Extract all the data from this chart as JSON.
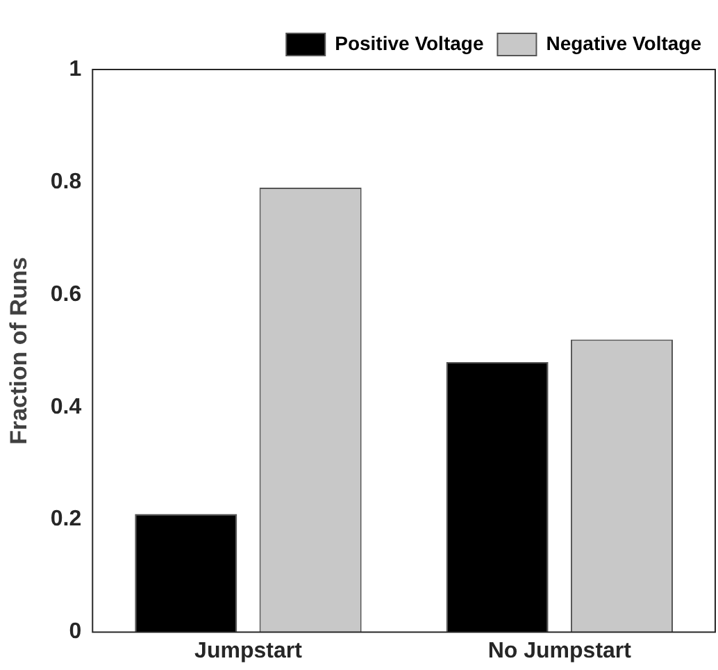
{
  "chart_data": {
    "type": "bar",
    "ylabel": "Fraction of Runs",
    "categories": [
      "Jumpstart",
      "No Jumpstart"
    ],
    "series": [
      {
        "name": "Positive Voltage",
        "color": "#000000",
        "values": [
          0.21,
          0.48
        ]
      },
      {
        "name": "Negative Voltage",
        "color": "#c8c8c8",
        "values": [
          0.79,
          0.52
        ]
      }
    ],
    "ylim": [
      0,
      1
    ],
    "yticks": [
      0,
      0.2,
      0.4,
      0.6,
      0.8,
      1
    ],
    "grid": false,
    "legend": "top right"
  }
}
